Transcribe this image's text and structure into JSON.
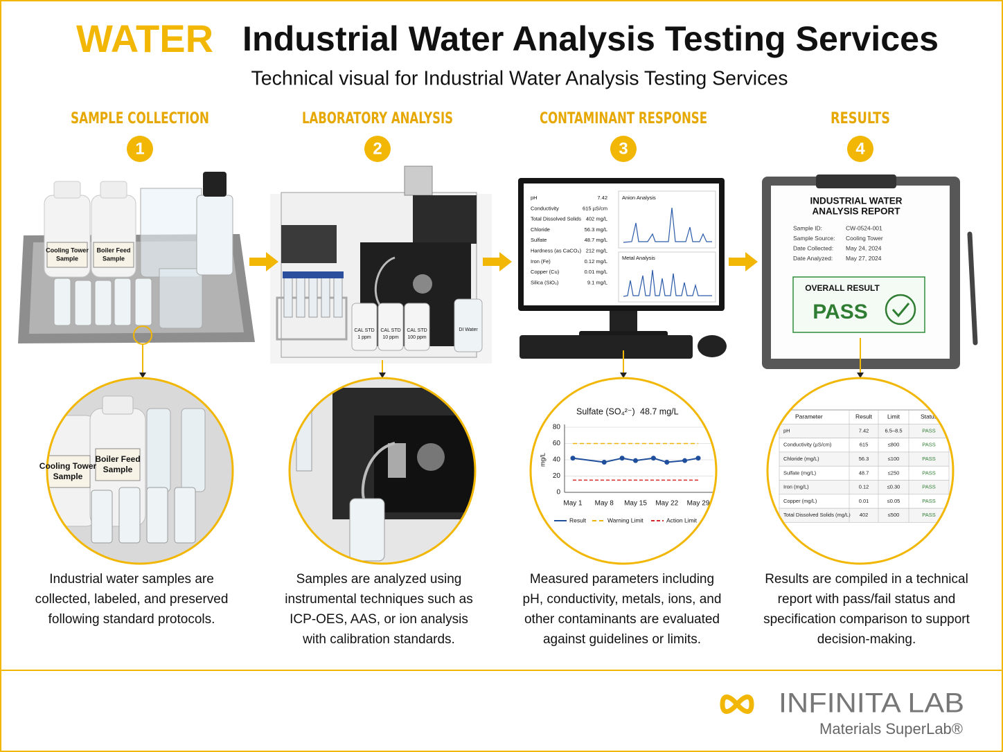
{
  "header": {
    "tag": "WATER",
    "title": "Industrial Water Analysis Testing Services",
    "subtitle": "Technical visual for Industrial Water Analysis Testing Services"
  },
  "steps": [
    {
      "title": "SAMPLE COLLECTION",
      "number": "1",
      "description": [
        "Industrial water samples are",
        "collected, labeled, and preserved",
        "following standard protocols."
      ]
    },
    {
      "title": "LABORATORY ANALYSIS",
      "number": "2",
      "description": [
        "Samples are analyzed using",
        "instrumental techniques such as",
        "ICP-OES, AAS, or ion analysis",
        "with calibration standards."
      ]
    },
    {
      "title": "CONTAMINANT RESPONSE",
      "number": "3",
      "description": [
        "Measured parameters including",
        "pH, conductivity, metals, ions, and",
        "other contaminants are evaluated",
        "against guidelines or limits."
      ]
    },
    {
      "title": "RESULTS",
      "number": "4",
      "description": [
        "Results are compiled in a technical",
        "report with pass/fail status and",
        "specification comparison to support",
        "decision-making."
      ]
    }
  ],
  "sample_labels": [
    [
      "Cooling Tower",
      "Sample"
    ],
    [
      "Boiler Feed",
      "Sample"
    ]
  ],
  "lab_labels": [
    [
      "CAL STD",
      "1 ppm"
    ],
    [
      "CAL STD",
      "10 ppm"
    ],
    [
      "CAL STD",
      "100 ppm"
    ],
    [
      "DI Water"
    ]
  ],
  "monitor": {
    "readings": [
      [
        "pH",
        "7.42"
      ],
      [
        "Conductivity",
        "615 µS/cm"
      ],
      [
        "Total Dissolved Solids",
        "402 mg/L"
      ],
      [
        "Chloride",
        "56.3 mg/L"
      ],
      [
        "Sulfate",
        "48.7 mg/L"
      ],
      [
        "Hardness (as CaCO₃)",
        "212 mg/L"
      ],
      [
        "Iron (Fe)",
        "0.12 mg/L"
      ],
      [
        "Copper (Cu)",
        "0.01 mg/L"
      ],
      [
        "Silica (SiO₂)",
        "9.1 mg/L"
      ]
    ],
    "panels": [
      "Anion Analysis",
      "Metal Analysis"
    ]
  },
  "report": {
    "title": [
      "INDUSTRIAL WATER",
      "ANALYSIS REPORT"
    ],
    "fields": [
      [
        "Sample ID:",
        "CW-0524-001"
      ],
      [
        "Sample Source:",
        "Cooling Tower"
      ],
      [
        "Date Collected:",
        "May 24, 2024"
      ],
      [
        "Date Analyzed:",
        "May 27, 2024"
      ]
    ],
    "result_label": "OVERALL RESULT",
    "result": "PASS"
  },
  "chart_data": {
    "type": "line",
    "title": "Sulfate (SO₄²⁻)",
    "subtitle": "48.7 mg/L",
    "y_label": "mg/L",
    "x": [
      "May 1",
      "May 8",
      "May 12",
      "May 15",
      "May 19",
      "May 22",
      "May 26",
      "May 29"
    ],
    "xticks": [
      "May 1",
      "May 8",
      "May 15",
      "May 22",
      "May 29"
    ],
    "ylim": [
      0,
      80
    ],
    "yticks": [
      0,
      20,
      40,
      60,
      80
    ],
    "series": [
      {
        "name": "Result",
        "color": "#1f4e9c",
        "values": [
          42,
          37,
          42,
          39,
          42,
          37,
          39,
          42
        ]
      },
      {
        "name": "Warning Limit",
        "color": "#f0b400",
        "values": [
          60,
          60,
          60,
          60,
          60,
          60,
          60,
          60
        ]
      },
      {
        "name": "Action Limit",
        "color": "#d62728",
        "values": [
          15,
          15,
          15,
          15,
          15,
          15,
          15,
          15
        ]
      }
    ]
  },
  "table": {
    "header": [
      "Parameter",
      "Result",
      "Limit",
      "Status"
    ],
    "rows": [
      [
        "pH",
        "7.42",
        "6.5–8.5",
        "PASS"
      ],
      [
        "Conductivity (µS/cm)",
        "615",
        "≤800",
        "PASS"
      ],
      [
        "Chloride (mg/L)",
        "56.3",
        "≤100",
        "PASS"
      ],
      [
        "Sulfate (mg/L)",
        "48.7",
        "≤250",
        "PASS"
      ],
      [
        "Iron (mg/L)",
        "0.12",
        "≤0.30",
        "PASS"
      ],
      [
        "Copper (mg/L)",
        "0.01",
        "≤0.05",
        "PASS"
      ],
      [
        "Total Dissolved Solids (mg/L)",
        "402",
        "≤500",
        "PASS"
      ]
    ]
  },
  "logo": {
    "name": "INFINITA LAB",
    "tagline": "Materials SuperLab®"
  }
}
